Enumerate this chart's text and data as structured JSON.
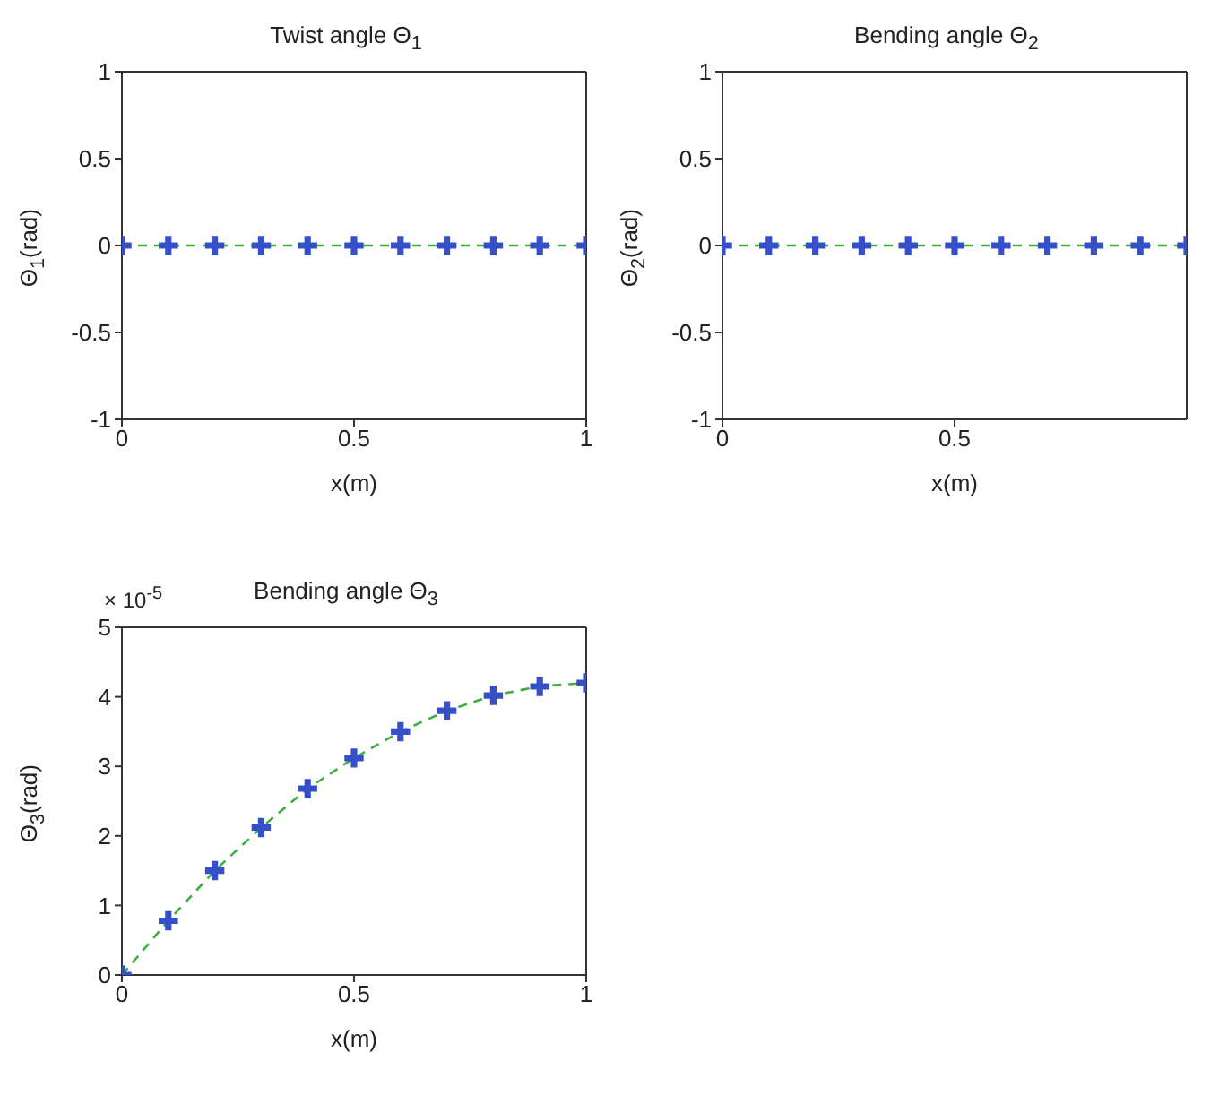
{
  "chart_data": [
    {
      "type": "line",
      "title": "Twist angle Θ$_{1}$",
      "xlabel": "x(m)",
      "ylabel": "Θ$_{1}$(rad)",
      "xlim": [
        0,
        1
      ],
      "xticks": [
        0,
        0.5,
        1
      ],
      "ylim": [
        -1,
        1
      ],
      "yticks": [
        -1,
        -0.5,
        0,
        0.5,
        1
      ],
      "x": [
        0,
        0.1,
        0.2,
        0.3,
        0.4,
        0.5,
        0.6,
        0.7,
        0.8,
        0.9,
        1
      ],
      "series": [
        {
          "type": "line",
          "color": "#3fae3f",
          "line_style": "dashed",
          "values": [
            0,
            0,
            0,
            0,
            0,
            0,
            0,
            0,
            0,
            0,
            0
          ]
        },
        {
          "type": "scatter",
          "color": "#3550c8",
          "marker": "cross",
          "values": [
            0,
            0,
            0,
            0,
            0,
            0,
            0,
            0,
            0,
            0,
            0
          ]
        }
      ]
    },
    {
      "type": "line",
      "title": "Bending angle Θ$_{2}$",
      "xlabel": "x(m)",
      "ylabel": "Θ$_{2}$(rad)",
      "xlim": [
        0,
        1
      ],
      "xticks": [
        0,
        0.5
      ],
      "ylim": [
        -1,
        1
      ],
      "yticks": [
        -1,
        -0.5,
        0,
        0.5,
        1
      ],
      "x": [
        0,
        0.1,
        0.2,
        0.3,
        0.4,
        0.5,
        0.6,
        0.7,
        0.8,
        0.9,
        1
      ],
      "series": [
        {
          "type": "line",
          "color": "#3fae3f",
          "line_style": "dashed",
          "values": [
            0,
            0,
            0,
            0,
            0,
            0,
            0,
            0,
            0,
            0,
            0
          ]
        },
        {
          "type": "scatter",
          "color": "#3550c8",
          "marker": "cross",
          "values": [
            0,
            0,
            0,
            0,
            0,
            0,
            0,
            0,
            0,
            0,
            0
          ]
        }
      ]
    },
    {
      "type": "line",
      "title": "Bending angle Θ$_{3}$",
      "xlabel": "x(m)",
      "ylabel": "Θ$_{3}$(rad)",
      "annotations": [
        "× 10$^{-5}$"
      ],
      "xlim": [
        0,
        1
      ],
      "xticks": [
        0,
        0.5,
        1
      ],
      "ylim": [
        0,
        5
      ],
      "yticks": [
        0,
        1,
        2,
        3,
        4,
        5
      ],
      "x": [
        0,
        0.1,
        0.2,
        0.3,
        0.4,
        0.5,
        0.6,
        0.7,
        0.8,
        0.9,
        1
      ],
      "series": [
        {
          "type": "line",
          "color": "#3fae3f",
          "line_style": "dashed",
          "values": [
            0,
            0.78,
            1.5,
            2.12,
            2.68,
            3.12,
            3.5,
            3.8,
            4.02,
            4.15,
            4.2
          ]
        },
        {
          "type": "scatter",
          "color": "#3550c8",
          "marker": "cross",
          "values": [
            0,
            0.78,
            1.5,
            2.12,
            2.68,
            3.12,
            3.5,
            3.8,
            4.02,
            4.15,
            4.2
          ]
        }
      ]
    }
  ]
}
